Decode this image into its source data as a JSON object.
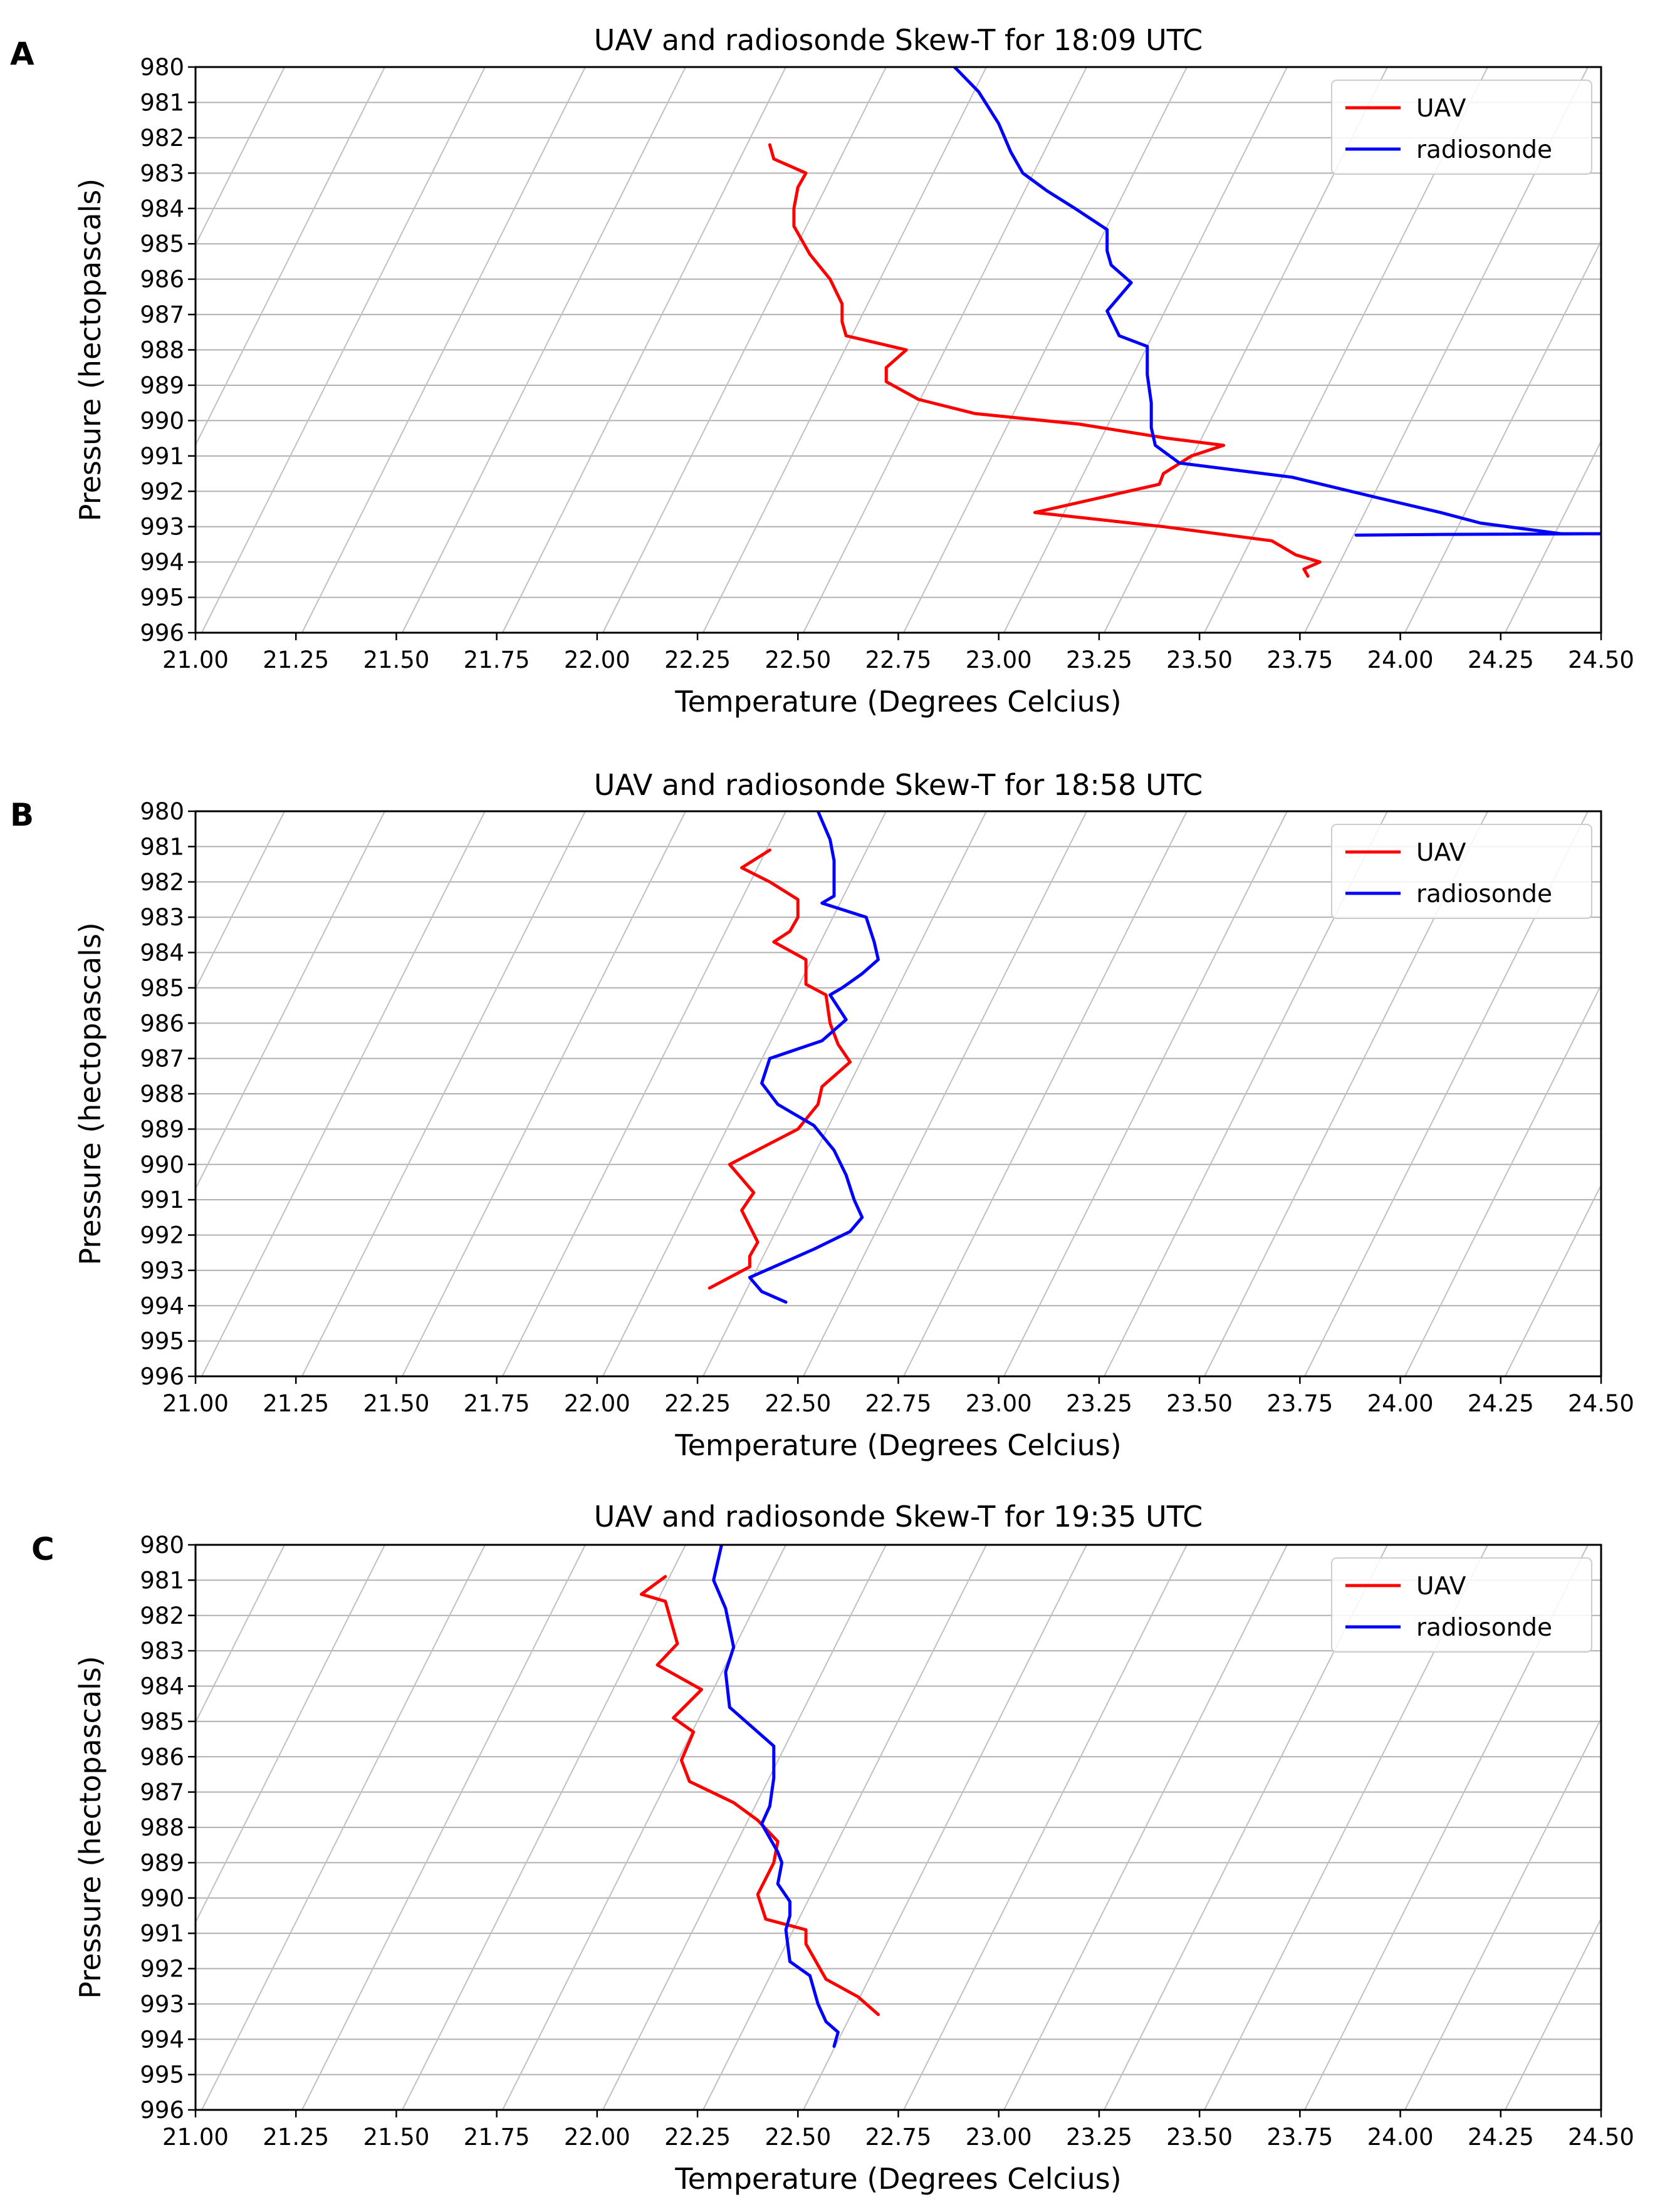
{
  "chart_data": [
    {
      "panel_label": "A",
      "type": "line",
      "title": "UAV and radiosonde Skew-T for 18:09 UTC",
      "xlabel": "Temperature (Degrees Celcius)",
      "ylabel": "Pressure (hectopascals)",
      "xlim": [
        21.0,
        24.5
      ],
      "ylim": [
        996,
        980
      ],
      "xticks": [
        "21.00",
        "21.25",
        "21.50",
        "21.75",
        "22.00",
        "22.25",
        "22.50",
        "22.75",
        "23.00",
        "23.25",
        "23.50",
        "23.75",
        "24.00",
        "24.25",
        "24.50"
      ],
      "yticks": [
        "980",
        "981",
        "982",
        "983",
        "984",
        "985",
        "986",
        "987",
        "988",
        "989",
        "990",
        "991",
        "992",
        "993",
        "994",
        "995",
        "996"
      ],
      "grid": true,
      "legend": "top-right",
      "series": [
        {
          "name": "UAV",
          "color": "#ff0000",
          "points": [
            [
              22.43,
              982.2
            ],
            [
              22.44,
              982.6
            ],
            [
              22.52,
              983.0
            ],
            [
              22.5,
              983.4
            ],
            [
              22.49,
              984.0
            ],
            [
              22.49,
              984.5
            ],
            [
              22.53,
              985.3
            ],
            [
              22.58,
              986.0
            ],
            [
              22.61,
              986.7
            ],
            [
              22.61,
              987.2
            ],
            [
              22.62,
              987.6
            ],
            [
              22.77,
              988.0
            ],
            [
              22.72,
              988.5
            ],
            [
              22.72,
              988.9
            ],
            [
              22.8,
              989.4
            ],
            [
              22.94,
              989.8
            ],
            [
              23.2,
              990.1
            ],
            [
              23.42,
              990.5
            ],
            [
              23.56,
              990.7
            ],
            [
              23.48,
              991.0
            ],
            [
              23.41,
              991.5
            ],
            [
              23.4,
              991.8
            ],
            [
              23.09,
              992.6
            ],
            [
              23.41,
              993.0
            ],
            [
              23.68,
              993.4
            ],
            [
              23.74,
              993.8
            ],
            [
              23.8,
              994.0
            ],
            [
              23.76,
              994.2
            ],
            [
              23.77,
              994.4
            ]
          ]
        },
        {
          "name": "radiosonde",
          "color": "#0000ff",
          "points": [
            [
              22.89,
              980.0
            ],
            [
              22.95,
              980.7
            ],
            [
              23.0,
              981.6
            ],
            [
              23.03,
              982.4
            ],
            [
              23.06,
              983.0
            ],
            [
              23.12,
              983.5
            ],
            [
              23.19,
              984.0
            ],
            [
              23.27,
              984.6
            ],
            [
              23.27,
              985.2
            ],
            [
              23.28,
              985.6
            ],
            [
              23.33,
              986.1
            ],
            [
              23.27,
              986.9
            ],
            [
              23.3,
              987.6
            ],
            [
              23.37,
              987.9
            ],
            [
              23.37,
              988.7
            ],
            [
              23.38,
              989.5
            ],
            [
              23.38,
              990.2
            ],
            [
              23.39,
              990.7
            ],
            [
              23.45,
              991.2
            ],
            [
              23.73,
              991.6
            ],
            [
              23.95,
              992.2
            ],
            [
              24.1,
              992.6
            ],
            [
              24.2,
              992.9
            ],
            [
              24.4,
              993.2
            ],
            [
              24.5,
              993.2
            ],
            [
              24.1,
              993.22
            ],
            [
              23.89,
              993.24
            ]
          ]
        }
      ]
    },
    {
      "panel_label": "B",
      "type": "line",
      "title": "UAV and radiosonde Skew-T for 18:58 UTC",
      "xlabel": "Temperature (Degrees Celcius)",
      "ylabel": "Pressure (hectopascals)",
      "xlim": [
        21.0,
        24.5
      ],
      "ylim": [
        996,
        980
      ],
      "xticks": [
        "21.00",
        "21.25",
        "21.50",
        "21.75",
        "22.00",
        "22.25",
        "22.50",
        "22.75",
        "23.00",
        "23.25",
        "23.50",
        "23.75",
        "24.00",
        "24.25",
        "24.50"
      ],
      "yticks": [
        "980",
        "981",
        "982",
        "983",
        "984",
        "985",
        "986",
        "987",
        "988",
        "989",
        "990",
        "991",
        "992",
        "993",
        "994",
        "995",
        "996"
      ],
      "grid": true,
      "legend": "top-right",
      "series": [
        {
          "name": "UAV",
          "color": "#ff0000",
          "points": [
            [
              22.43,
              981.1
            ],
            [
              22.36,
              981.6
            ],
            [
              22.43,
              982.0
            ],
            [
              22.5,
              982.5
            ],
            [
              22.5,
              983.0
            ],
            [
              22.48,
              983.4
            ],
            [
              22.44,
              983.7
            ],
            [
              22.52,
              984.2
            ],
            [
              22.52,
              984.9
            ],
            [
              22.57,
              985.2
            ],
            [
              22.58,
              986.0
            ],
            [
              22.6,
              986.6
            ],
            [
              22.63,
              987.1
            ],
            [
              22.56,
              987.8
            ],
            [
              22.55,
              988.3
            ],
            [
              22.5,
              989.0
            ],
            [
              22.33,
              990.0
            ],
            [
              22.39,
              990.8
            ],
            [
              22.36,
              991.3
            ],
            [
              22.4,
              992.2
            ],
            [
              22.38,
              992.6
            ],
            [
              22.38,
              992.9
            ],
            [
              22.28,
              993.5
            ]
          ]
        },
        {
          "name": "radiosonde",
          "color": "#0000ff",
          "points": [
            [
              22.55,
              980.0
            ],
            [
              22.58,
              980.8
            ],
            [
              22.59,
              981.4
            ],
            [
              22.59,
              982.0
            ],
            [
              22.59,
              982.4
            ],
            [
              22.56,
              982.6
            ],
            [
              22.67,
              983.0
            ],
            [
              22.69,
              983.7
            ],
            [
              22.7,
              984.2
            ],
            [
              22.66,
              984.6
            ],
            [
              22.61,
              985.0
            ],
            [
              22.58,
              985.2
            ],
            [
              22.62,
              985.9
            ],
            [
              22.56,
              986.5
            ],
            [
              22.43,
              987.0
            ],
            [
              22.41,
              987.7
            ],
            [
              22.45,
              988.3
            ],
            [
              22.54,
              988.9
            ],
            [
              22.59,
              989.6
            ],
            [
              22.62,
              990.3
            ],
            [
              22.64,
              991.0
            ],
            [
              22.66,
              991.5
            ],
            [
              22.63,
              991.9
            ],
            [
              22.54,
              992.4
            ],
            [
              22.38,
              993.2
            ],
            [
              22.41,
              993.6
            ],
            [
              22.47,
              993.9
            ]
          ]
        }
      ]
    },
    {
      "panel_label": "C",
      "type": "line",
      "title": "UAV and radiosonde Skew-T for 19:35 UTC",
      "xlabel": "Temperature (Degrees Celcius)",
      "ylabel": "Pressure (hectopascals)",
      "xlim": [
        21.0,
        24.5
      ],
      "ylim": [
        996,
        980
      ],
      "xticks": [
        "21.00",
        "21.25",
        "21.50",
        "21.75",
        "22.00",
        "22.25",
        "22.50",
        "22.75",
        "23.00",
        "23.25",
        "23.50",
        "23.75",
        "24.00",
        "24.25",
        "24.50"
      ],
      "yticks": [
        "980",
        "981",
        "982",
        "983",
        "984",
        "985",
        "986",
        "987",
        "988",
        "989",
        "990",
        "991",
        "992",
        "993",
        "994",
        "995",
        "996"
      ],
      "grid": true,
      "legend": "top-right",
      "series": [
        {
          "name": "UAV",
          "color": "#ff0000",
          "points": [
            [
              22.17,
              980.9
            ],
            [
              22.11,
              981.4
            ],
            [
              22.17,
              981.6
            ],
            [
              22.19,
              982.4
            ],
            [
              22.2,
              982.8
            ],
            [
              22.15,
              983.4
            ],
            [
              22.26,
              984.1
            ],
            [
              22.19,
              984.9
            ],
            [
              22.24,
              985.3
            ],
            [
              22.21,
              986.1
            ],
            [
              22.23,
              986.7
            ],
            [
              22.34,
              987.3
            ],
            [
              22.4,
              987.8
            ],
            [
              22.45,
              988.4
            ],
            [
              22.44,
              989.0
            ],
            [
              22.4,
              989.9
            ],
            [
              22.42,
              990.6
            ],
            [
              22.52,
              990.9
            ],
            [
              22.52,
              991.3
            ],
            [
              22.57,
              992.3
            ],
            [
              22.65,
              992.8
            ],
            [
              22.7,
              993.3
            ]
          ]
        },
        {
          "name": "radiosonde",
          "color": "#0000ff",
          "points": [
            [
              22.31,
              980.0
            ],
            [
              22.29,
              981.0
            ],
            [
              22.32,
              981.8
            ],
            [
              22.34,
              982.9
            ],
            [
              22.32,
              983.6
            ],
            [
              22.33,
              984.6
            ],
            [
              22.44,
              985.7
            ],
            [
              22.44,
              986.6
            ],
            [
              22.43,
              987.4
            ],
            [
              22.41,
              987.9
            ],
            [
              22.45,
              988.7
            ],
            [
              22.46,
              989.0
            ],
            [
              22.45,
              989.6
            ],
            [
              22.48,
              990.1
            ],
            [
              22.48,
              990.5
            ],
            [
              22.47,
              990.9
            ],
            [
              22.48,
              991.8
            ],
            [
              22.53,
              992.2
            ],
            [
              22.55,
              993.0
            ],
            [
              22.57,
              993.5
            ],
            [
              22.6,
              993.8
            ],
            [
              22.59,
              994.2
            ]
          ]
        }
      ]
    }
  ]
}
